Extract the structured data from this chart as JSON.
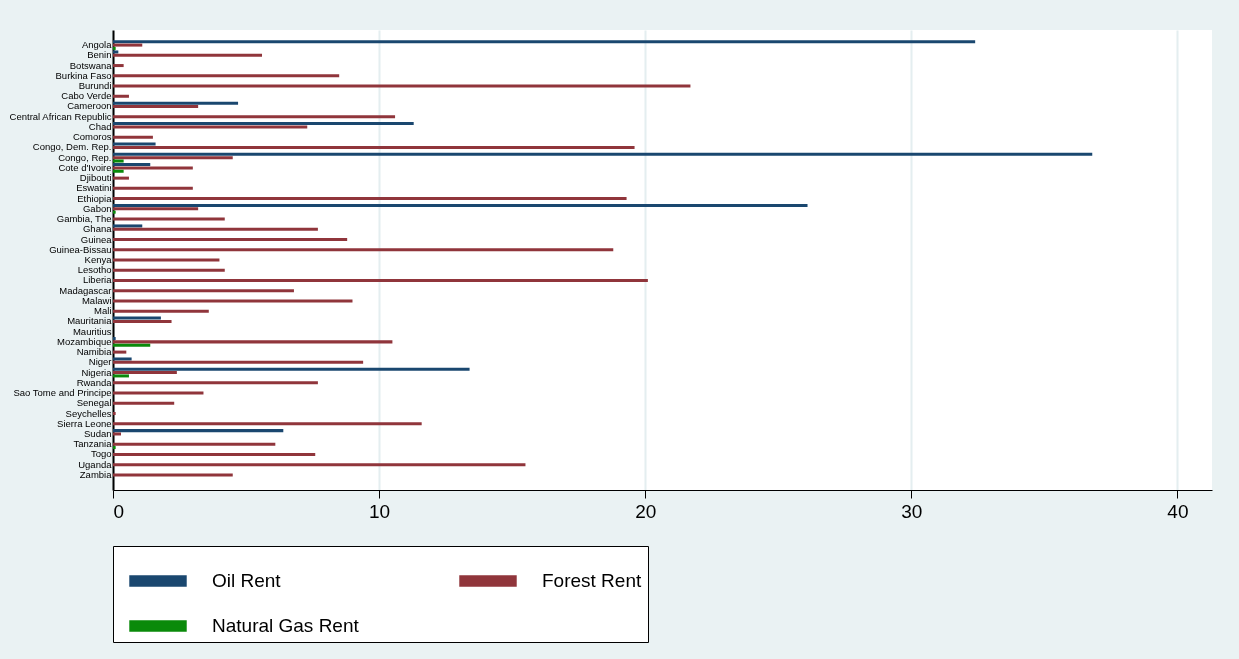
{
  "chart_data": {
    "type": "bar",
    "orientation": "horizontal",
    "categories": [
      "Angola",
      "Benin",
      "Botswana",
      "Burkina Faso",
      "Burundi",
      "Cabo Verde",
      "Cameroon",
      "Central African Republic",
      "Chad",
      "Comoros",
      "Congo, Dem. Rep.",
      "Congo, Rep.",
      "Cote d'Ivoire",
      "Djibouti",
      "Eswatini",
      "Ethiopia",
      "Gabon",
      "Gambia, The",
      "Ghana",
      "Guinea",
      "Guinea-Bissau",
      "Kenya",
      "Lesotho",
      "Liberia",
      "Madagascar",
      "Malawi",
      "Mali",
      "Mauritania",
      "Mauritius",
      "Mozambique",
      "Namibia",
      "Niger",
      "Nigeria",
      "Rwanda",
      "Sao Tome and Principe",
      "Senegal",
      "Seychelles",
      "Sierra Leone",
      "Sudan",
      "Tanzania",
      "Togo",
      "Uganda",
      "Zambia"
    ],
    "series": [
      {
        "name": "Oil Rent",
        "color": "#1a476f",
        "values": [
          32.4,
          0.2,
          0,
          0,
          0,
          0,
          4.7,
          0,
          11.3,
          0,
          1.6,
          36.8,
          1.4,
          0,
          0,
          0,
          26.1,
          0,
          1.1,
          0,
          0,
          0,
          0,
          0,
          0,
          0,
          0,
          1.8,
          0,
          0.1,
          0,
          0.7,
          13.4,
          0,
          0,
          0,
          0,
          0,
          6.4,
          0,
          0,
          0,
          0
        ]
      },
      {
        "name": "Forest Rent",
        "color": "#90353b",
        "values": [
          1.1,
          5.6,
          0.4,
          8.5,
          21.7,
          0.6,
          3.2,
          10.6,
          7.3,
          1.5,
          19.6,
          4.5,
          3.0,
          0.6,
          3.0,
          19.3,
          3.2,
          4.2,
          7.7,
          8.8,
          18.8,
          4.0,
          4.2,
          20.1,
          6.8,
          9.0,
          3.6,
          2.2,
          0,
          10.5,
          0.5,
          9.4,
          2.4,
          7.7,
          3.4,
          2.3,
          0.1,
          11.6,
          0.3,
          6.1,
          7.6,
          15.5,
          4.5
        ]
      },
      {
        "name": "Natural Gas Rent",
        "color": "#0a8a0a",
        "values": [
          0.1,
          0,
          0,
          0,
          0,
          0,
          0,
          0,
          0,
          0,
          0,
          0.4,
          0.4,
          0,
          0,
          0,
          0.1,
          0,
          0,
          0,
          0,
          0,
          0,
          0,
          0,
          0,
          0,
          0,
          0,
          1.4,
          0,
          0,
          0.6,
          0,
          0,
          0,
          0,
          0,
          0,
          0.1,
          0,
          0,
          0
        ]
      }
    ],
    "xlim": [
      0,
      41.3
    ],
    "xticks": [
      0,
      10,
      20,
      30,
      40
    ],
    "grid": "x",
    "legend": "bottom"
  }
}
